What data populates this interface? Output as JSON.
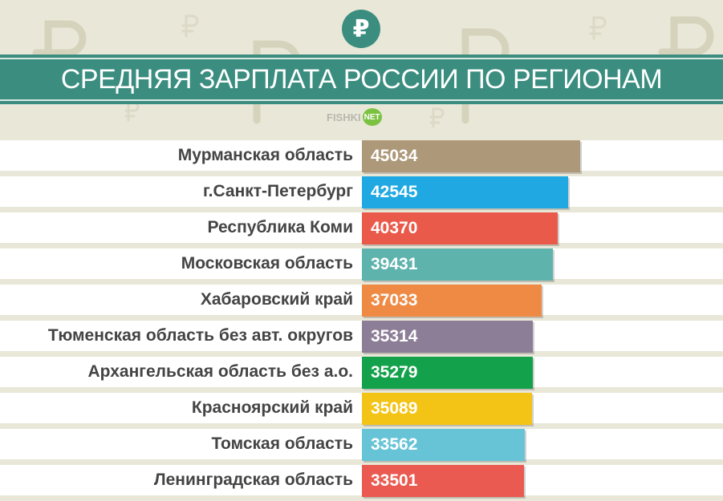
{
  "header": {
    "title": "СРЕДНЯЯ ЗАРПЛАТА РОССИИ ПО РЕГИОНАМ",
    "currency_symbol": "₽",
    "source_text": "FISHKI",
    "source_badge": "NET"
  },
  "colors": {
    "title_band": "#3a8d7f",
    "background": "#e9e7d8"
  },
  "icons": [
    "ruble-icon"
  ],
  "chart_data": {
    "type": "bar",
    "orientation": "horizontal",
    "title": "СРЕДНЯЯ ЗАРПЛАТА РОССИИ ПО РЕГИОНАМ",
    "xlabel": "",
    "ylabel": "",
    "categories": [
      "Мурманская область",
      "г.Санкт-Петербург",
      "Республика Коми",
      "Московская область",
      "Хабаровский край",
      "Тюменская область без авт. округов",
      "Архангельская область без а.о.",
      "Красноярский край",
      "Томская область",
      "Ленинградская область"
    ],
    "values": [
      45034,
      42545,
      40370,
      39431,
      37033,
      35314,
      35279,
      35089,
      33562,
      33501
    ],
    "labels": [
      "45034",
      "42545",
      "40370",
      "39431",
      "37033",
      "35314",
      "35279",
      "35089",
      "33562",
      "33501"
    ],
    "bar_colors": [
      "#ad9979",
      "#1fa8e2",
      "#e95a4a",
      "#5fb3ad",
      "#ef8a45",
      "#8d7e97",
      "#14a14b",
      "#f3c315",
      "#67c4d6",
      "#ea5a50"
    ],
    "xlim": [
      0,
      45034
    ],
    "grid": false,
    "legend": "none"
  }
}
